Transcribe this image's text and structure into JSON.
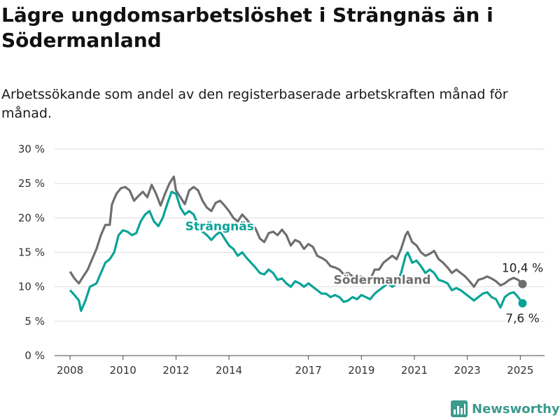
{
  "header": {
    "title": "Lägre ungdomsarbetslöshet i Strängnäs än i Södermanland",
    "subtitle": "Arbetssökande som andel av den registerbaserade arbetskraften månad för månad."
  },
  "brand": {
    "name": "Newsworthy",
    "icon": "bar-chart-icon"
  },
  "chart_data": {
    "type": "line",
    "title": "",
    "xlabel": "",
    "ylabel": "",
    "ylim": [
      0,
      30
    ],
    "xlim": [
      "2007-06",
      "2025-12"
    ],
    "grid": true,
    "y_ticks": [
      "0 %",
      "5 %",
      "10 %",
      "15 %",
      "20 %",
      "25 %",
      "30 %"
    ],
    "y_tick_values": [
      0,
      5,
      10,
      15,
      20,
      25,
      30
    ],
    "x_ticks": [
      "2008",
      "2010",
      "2012",
      "2014",
      "2017",
      "2019",
      "2021",
      "2023",
      "2025"
    ],
    "end_labels": [
      "10,4 %",
      "7,6 %"
    ],
    "series": [
      {
        "name": "Södermanland",
        "color": "#6e6e6e",
        "points": [
          [
            "2008-01",
            12.2
          ],
          [
            "2008-03",
            11.2
          ],
          [
            "2008-05",
            10.5
          ],
          [
            "2008-07",
            11.5
          ],
          [
            "2008-09",
            12.5
          ],
          [
            "2008-11",
            14.0
          ],
          [
            "2009-01",
            15.5
          ],
          [
            "2009-03",
            17.5
          ],
          [
            "2009-05",
            19.0
          ],
          [
            "2009-07",
            19.0
          ],
          [
            "2009-08",
            22.0
          ],
          [
            "2009-10",
            23.5
          ],
          [
            "2009-12",
            24.3
          ],
          [
            "2010-02",
            24.5
          ],
          [
            "2010-04",
            24.0
          ],
          [
            "2010-06",
            22.5
          ],
          [
            "2010-08",
            23.2
          ],
          [
            "2010-10",
            23.8
          ],
          [
            "2010-12",
            23.0
          ],
          [
            "2011-02",
            24.8
          ],
          [
            "2011-04",
            23.5
          ],
          [
            "2011-06",
            21.8
          ],
          [
            "2011-08",
            23.5
          ],
          [
            "2011-10",
            25.0
          ],
          [
            "2011-12",
            26.0
          ],
          [
            "2012-01",
            24.0
          ],
          [
            "2012-03",
            23.0
          ],
          [
            "2012-05",
            22.0
          ],
          [
            "2012-07",
            24.0
          ],
          [
            "2012-09",
            24.5
          ],
          [
            "2012-11",
            24.0
          ],
          [
            "2013-01",
            22.5
          ],
          [
            "2013-03",
            21.5
          ],
          [
            "2013-05",
            21.0
          ],
          [
            "2013-07",
            22.2
          ],
          [
            "2013-09",
            22.5
          ],
          [
            "2013-11",
            21.8
          ],
          [
            "2014-01",
            21.0
          ],
          [
            "2014-03",
            20.0
          ],
          [
            "2014-05",
            19.5
          ],
          [
            "2014-07",
            20.5
          ],
          [
            "2014-09",
            19.8
          ],
          [
            "2014-11",
            19.0
          ],
          [
            "2015-01",
            18.5
          ],
          [
            "2015-03",
            17.0
          ],
          [
            "2015-05",
            16.5
          ],
          [
            "2015-07",
            17.8
          ],
          [
            "2015-09",
            18.0
          ],
          [
            "2015-11",
            17.5
          ],
          [
            "2016-01",
            18.3
          ],
          [
            "2016-03",
            17.5
          ],
          [
            "2016-05",
            16.0
          ],
          [
            "2016-07",
            16.8
          ],
          [
            "2016-09",
            16.5
          ],
          [
            "2016-11",
            15.5
          ],
          [
            "2017-01",
            16.2
          ],
          [
            "2017-03",
            15.8
          ],
          [
            "2017-05",
            14.5
          ],
          [
            "2017-07",
            14.2
          ],
          [
            "2017-09",
            13.8
          ],
          [
            "2017-11",
            13.0
          ],
          [
            "2018-01",
            12.8
          ],
          [
            "2018-03",
            12.5
          ],
          [
            "2018-05",
            11.8
          ],
          [
            "2018-07",
            12.0
          ],
          [
            "2018-09",
            11.5
          ],
          [
            "2018-11",
            11.0
          ],
          [
            "2019-01",
            11.5
          ],
          [
            "2019-03",
            11.2
          ],
          [
            "2019-05",
            11.0
          ],
          [
            "2019-07",
            12.5
          ],
          [
            "2019-09",
            12.5
          ],
          [
            "2019-11",
            13.5
          ],
          [
            "2020-01",
            14.0
          ],
          [
            "2020-03",
            14.5
          ],
          [
            "2020-05",
            14.0
          ],
          [
            "2020-07",
            15.5
          ],
          [
            "2020-09",
            17.5
          ],
          [
            "2020-10",
            18.0
          ],
          [
            "2020-12",
            16.5
          ],
          [
            "2021-02",
            16.0
          ],
          [
            "2021-04",
            15.0
          ],
          [
            "2021-06",
            14.5
          ],
          [
            "2021-08",
            14.8
          ],
          [
            "2021-10",
            15.2
          ],
          [
            "2021-12",
            14.0
          ],
          [
            "2022-02",
            13.5
          ],
          [
            "2022-04",
            12.8
          ],
          [
            "2022-06",
            12.0
          ],
          [
            "2022-08",
            12.5
          ],
          [
            "2022-10",
            12.0
          ],
          [
            "2022-12",
            11.5
          ],
          [
            "2023-02",
            10.8
          ],
          [
            "2023-04",
            10.0
          ],
          [
            "2023-06",
            11.0
          ],
          [
            "2023-08",
            11.2
          ],
          [
            "2023-10",
            11.5
          ],
          [
            "2023-12",
            11.2
          ],
          [
            "2024-02",
            10.8
          ],
          [
            "2024-04",
            10.2
          ],
          [
            "2024-06",
            10.5
          ],
          [
            "2024-08",
            11.0
          ],
          [
            "2024-10",
            11.3
          ],
          [
            "2024-12",
            11.0
          ],
          [
            "2025-02",
            10.4
          ]
        ]
      },
      {
        "name": "Strängnäs",
        "color": "#0aa398",
        "points": [
          [
            "2008-01",
            9.5
          ],
          [
            "2008-03",
            8.8
          ],
          [
            "2008-05",
            8.0
          ],
          [
            "2008-06",
            6.5
          ],
          [
            "2008-08",
            8.0
          ],
          [
            "2008-10",
            10.0
          ],
          [
            "2009-01",
            10.5
          ],
          [
            "2009-03",
            12.0
          ],
          [
            "2009-05",
            13.5
          ],
          [
            "2009-07",
            14.0
          ],
          [
            "2009-09",
            15.0
          ],
          [
            "2009-11",
            17.5
          ],
          [
            "2010-01",
            18.2
          ],
          [
            "2010-03",
            18.0
          ],
          [
            "2010-05",
            17.5
          ],
          [
            "2010-07",
            17.8
          ],
          [
            "2010-09",
            19.5
          ],
          [
            "2010-11",
            20.5
          ],
          [
            "2011-01",
            21.0
          ],
          [
            "2011-03",
            19.5
          ],
          [
            "2011-05",
            18.8
          ],
          [
            "2011-07",
            20.0
          ],
          [
            "2011-09",
            22.0
          ],
          [
            "2011-11",
            23.8
          ],
          [
            "2012-01",
            23.5
          ],
          [
            "2012-03",
            21.5
          ],
          [
            "2012-05",
            20.5
          ],
          [
            "2012-07",
            21.0
          ],
          [
            "2012-09",
            20.5
          ],
          [
            "2012-11",
            19.0
          ],
          [
            "2013-01",
            18.0
          ],
          [
            "2013-03",
            17.5
          ],
          [
            "2013-05",
            16.8
          ],
          [
            "2013-07",
            17.5
          ],
          [
            "2013-09",
            18.0
          ],
          [
            "2013-11",
            17.0
          ],
          [
            "2014-01",
            16.0
          ],
          [
            "2014-03",
            15.5
          ],
          [
            "2014-05",
            14.5
          ],
          [
            "2014-07",
            15.0
          ],
          [
            "2014-09",
            14.2
          ],
          [
            "2014-11",
            13.5
          ],
          [
            "2015-01",
            12.8
          ],
          [
            "2015-03",
            12.0
          ],
          [
            "2015-05",
            11.8
          ],
          [
            "2015-07",
            12.5
          ],
          [
            "2015-09",
            12.0
          ],
          [
            "2015-11",
            11.0
          ],
          [
            "2016-01",
            11.2
          ],
          [
            "2016-03",
            10.5
          ],
          [
            "2016-05",
            10.0
          ],
          [
            "2016-07",
            10.8
          ],
          [
            "2016-09",
            10.5
          ],
          [
            "2016-11",
            10.0
          ],
          [
            "2017-01",
            10.5
          ],
          [
            "2017-03",
            10.0
          ],
          [
            "2017-05",
            9.5
          ],
          [
            "2017-07",
            9.0
          ],
          [
            "2017-09",
            9.0
          ],
          [
            "2017-11",
            8.5
          ],
          [
            "2018-01",
            8.8
          ],
          [
            "2018-03",
            8.5
          ],
          [
            "2018-05",
            7.8
          ],
          [
            "2018-07",
            8.0
          ],
          [
            "2018-09",
            8.5
          ],
          [
            "2018-11",
            8.2
          ],
          [
            "2019-01",
            8.8
          ],
          [
            "2019-03",
            8.5
          ],
          [
            "2019-05",
            8.2
          ],
          [
            "2019-07",
            9.0
          ],
          [
            "2019-09",
            9.5
          ],
          [
            "2019-11",
            10.0
          ],
          [
            "2020-01",
            10.5
          ],
          [
            "2020-03",
            10.0
          ],
          [
            "2020-05",
            10.5
          ],
          [
            "2020-07",
            12.0
          ],
          [
            "2020-09",
            14.5
          ],
          [
            "2020-10",
            15.0
          ],
          [
            "2020-12",
            13.5
          ],
          [
            "2021-02",
            13.8
          ],
          [
            "2021-04",
            13.0
          ],
          [
            "2021-06",
            12.0
          ],
          [
            "2021-08",
            12.5
          ],
          [
            "2021-10",
            12.0
          ],
          [
            "2021-12",
            11.0
          ],
          [
            "2022-02",
            10.8
          ],
          [
            "2022-04",
            10.5
          ],
          [
            "2022-06",
            9.5
          ],
          [
            "2022-08",
            9.8
          ],
          [
            "2022-10",
            9.5
          ],
          [
            "2022-12",
            9.0
          ],
          [
            "2023-02",
            8.5
          ],
          [
            "2023-04",
            8.0
          ],
          [
            "2023-06",
            8.5
          ],
          [
            "2023-08",
            9.0
          ],
          [
            "2023-10",
            9.2
          ],
          [
            "2023-12",
            8.5
          ],
          [
            "2024-02",
            8.2
          ],
          [
            "2024-04",
            7.0
          ],
          [
            "2024-06",
            8.5
          ],
          [
            "2024-08",
            9.0
          ],
          [
            "2024-10",
            9.2
          ],
          [
            "2024-12",
            8.5
          ],
          [
            "2025-02",
            7.6
          ]
        ]
      }
    ]
  }
}
